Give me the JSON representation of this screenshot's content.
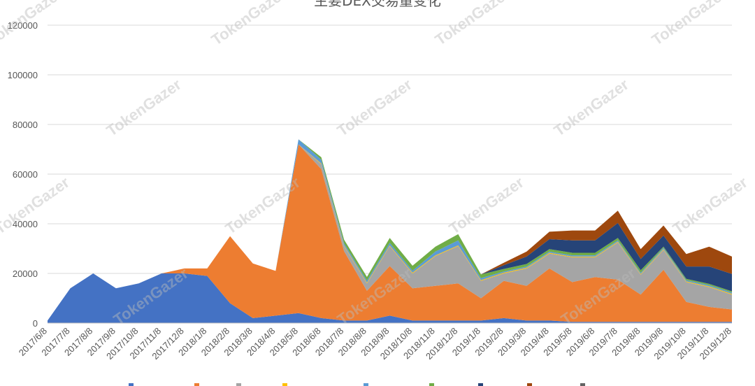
{
  "chart_data": {
    "type": "area",
    "stacked": true,
    "title": "主要DEX交易量变化",
    "xlabel": "",
    "ylabel": "",
    "ylim": [
      0,
      120000
    ],
    "yticks": [
      0,
      20000,
      40000,
      60000,
      80000,
      100000,
      120000
    ],
    "x_tick_labels": [
      "2017/6/8",
      "2017/7/8",
      "2017/8/8",
      "2017/9/8",
      "2017/10/8",
      "2017/11/8",
      "2017/12/8",
      "2018/1/8",
      "2018/2/8",
      "2018/3/8",
      "2018/4/8",
      "2018/5/8",
      "2018/6/8",
      "2018/7/8",
      "2018/8/8",
      "2018/9/8",
      "2018/10/8",
      "2018/11/8",
      "2018/12/8",
      "2019/1/8",
      "2019/2/8",
      "2019/3/8",
      "2019/4/8",
      "2019/5/8",
      "2019/6/8",
      "2019/7/8",
      "2019/8/8",
      "2019/9/8",
      "2019/10/8",
      "2019/11/8",
      "2019/12/8"
    ],
    "x_dates": [
      "2017-06-08",
      "2017-07-08",
      "2017-08-08",
      "2017-09-08",
      "2017-10-08",
      "2017-11-08",
      "2017-12-08",
      "2018-01-08",
      "2018-02-08",
      "2018-03-08",
      "2018-04-08",
      "2018-05-08",
      "2018-06-08",
      "2018-07-08",
      "2018-08-08",
      "2018-09-08",
      "2018-10-08",
      "2018-11-08",
      "2018-12-08",
      "2019-01-08",
      "2019-02-08",
      "2019-03-08",
      "2019-04-08",
      "2019-05-08",
      "2019-06-08",
      "2019-07-08",
      "2019-08-08",
      "2019-09-08",
      "2019-10-08",
      "2019-11-08",
      "2019-12-08"
    ],
    "grid": true,
    "legend_position": "bottom",
    "series": [
      {
        "color": "#4472c4",
        "values": [
          1000,
          14000,
          20000,
          14000,
          16000,
          20000,
          20000,
          19000,
          8000,
          2000,
          3000,
          4000,
          2000,
          1000,
          1000,
          3000,
          1000,
          1000,
          1000,
          1000,
          2000,
          1000,
          1000,
          500,
          500,
          500,
          500,
          500,
          500,
          500,
          500
        ]
      },
      {
        "color": "#ed7d31",
        "values": [
          0,
          0,
          0,
          0,
          0,
          0,
          2000,
          3000,
          27000,
          22000,
          18000,
          68000,
          60000,
          28000,
          12000,
          20000,
          13000,
          14000,
          15000,
          9000,
          15000,
          14000,
          21000,
          16000,
          18000,
          17000,
          11000,
          21000,
          8000,
          6000,
          5000
        ]
      },
      {
        "color": "#a5a5a5",
        "values": [
          0,
          0,
          0,
          0,
          0,
          0,
          0,
          0,
          0,
          0,
          0,
          0,
          2000,
          2000,
          3000,
          8000,
          6000,
          12000,
          15000,
          7000,
          3000,
          7000,
          6000,
          10000,
          8000,
          15000,
          8000,
          8000,
          8000,
          8000,
          6000
        ]
      },
      {
        "color": "#ffc000",
        "values": [
          0,
          0,
          0,
          0,
          0,
          0,
          0,
          0,
          0,
          0,
          0,
          0,
          300,
          300,
          300,
          300,
          300,
          300,
          300,
          300,
          300,
          300,
          300,
          300,
          300,
          300,
          300,
          300,
          300,
          300,
          300
        ]
      },
      {
        "color": "#5b9bd5",
        "values": [
          0,
          0,
          0,
          0,
          0,
          0,
          0,
          0,
          0,
          0,
          0,
          2000,
          1500,
          800,
          800,
          1000,
          800,
          1500,
          2000,
          800,
          500,
          500,
          500,
          500,
          500,
          500,
          500,
          500,
          500,
          500,
          500
        ]
      },
      {
        "color": "#70ad47",
        "values": [
          0,
          0,
          0,
          0,
          0,
          0,
          0,
          0,
          0,
          0,
          0,
          0,
          1000,
          1500,
          1500,
          2000,
          2000,
          2000,
          2500,
          1500,
          1000,
          1000,
          1000,
          1000,
          1000,
          1000,
          1000,
          500,
          500,
          500,
          500
        ]
      },
      {
        "color": "#264478",
        "values": [
          0,
          0,
          0,
          0,
          0,
          0,
          0,
          0,
          0,
          0,
          0,
          0,
          0,
          0,
          0,
          0,
          0,
          0,
          0,
          0,
          1500,
          3000,
          4000,
          5000,
          5000,
          6000,
          4500,
          4500,
          5000,
          7000,
          7000
        ]
      },
      {
        "color": "#9e480e",
        "values": [
          0,
          0,
          0,
          0,
          0,
          0,
          0,
          0,
          0,
          0,
          0,
          0,
          0,
          0,
          0,
          0,
          0,
          0,
          0,
          0,
          1000,
          2000,
          3000,
          4000,
          4000,
          5000,
          4000,
          4000,
          5000,
          8000,
          7000
        ]
      },
      {
        "color": "#636363",
        "values": [
          0,
          0,
          0,
          0,
          0,
          0,
          0,
          0,
          0,
          0,
          0,
          0,
          0,
          0,
          0,
          0,
          0,
          0,
          0,
          0,
          0,
          0,
          0,
          0,
          0,
          0,
          0,
          0,
          0,
          0,
          0
        ]
      }
    ],
    "watermark_text": "TokenGazer"
  }
}
